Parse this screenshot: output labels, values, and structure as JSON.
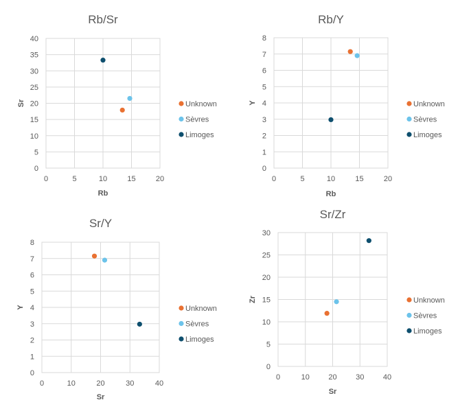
{
  "colors": {
    "Unknown": "#E97132",
    "Sèvres": "#6CC3EA",
    "Limoges": "#0E4F6E"
  },
  "chart_data": [
    {
      "type": "scatter",
      "title": "Rb/Sr",
      "xlabel": "Rb",
      "ylabel": "Sr",
      "xlim": [
        0,
        20
      ],
      "ylim": [
        0,
        40
      ],
      "xticks": [
        "0",
        "5",
        "10",
        "15",
        "20"
      ],
      "yticks": [
        "0",
        "5",
        "10",
        "15",
        "20",
        "25",
        "30",
        "35",
        "40"
      ],
      "grid": true,
      "legend_position": "right",
      "series": [
        {
          "name": "Unknown",
          "points": [
            {
              "x": 13.4,
              "y": 17.9
            }
          ]
        },
        {
          "name": "Sèvres",
          "points": [
            {
              "x": 14.7,
              "y": 21.5
            }
          ]
        },
        {
          "name": "Limoges",
          "points": [
            {
              "x": 10.0,
              "y": 33.3
            }
          ]
        }
      ]
    },
    {
      "type": "scatter",
      "title": "Rb/Y",
      "xlabel": "Rb",
      "ylabel": "Y",
      "xlim": [
        0,
        20
      ],
      "ylim": [
        0,
        8
      ],
      "xticks": [
        "0",
        "5",
        "10",
        "15",
        "20"
      ],
      "yticks": [
        "0",
        "1",
        "2",
        "3",
        "4",
        "5",
        "6",
        "7",
        "8"
      ],
      "grid": true,
      "legend_position": "right",
      "series": [
        {
          "name": "Unknown",
          "points": [
            {
              "x": 13.4,
              "y": 7.15
            }
          ]
        },
        {
          "name": "Sèvres",
          "points": [
            {
              "x": 14.6,
              "y": 6.9
            }
          ]
        },
        {
          "name": "Limoges",
          "points": [
            {
              "x": 10.0,
              "y": 2.97
            }
          ]
        }
      ]
    },
    {
      "type": "scatter",
      "title": "Sr/Y",
      "xlabel": "Sr",
      "ylabel": "Y",
      "xlim": [
        0,
        40
      ],
      "ylim": [
        0,
        8
      ],
      "xticks": [
        "0",
        "10",
        "20",
        "30",
        "40"
      ],
      "yticks": [
        "0",
        "1",
        "2",
        "3",
        "4",
        "5",
        "6",
        "7",
        "8"
      ],
      "grid": true,
      "legend_position": "right",
      "series": [
        {
          "name": "Unknown",
          "points": [
            {
              "x": 17.9,
              "y": 7.15
            }
          ]
        },
        {
          "name": "Sèvres",
          "points": [
            {
              "x": 21.4,
              "y": 6.9
            }
          ]
        },
        {
          "name": "Limoges",
          "points": [
            {
              "x": 33.3,
              "y": 2.97
            }
          ]
        }
      ]
    },
    {
      "type": "scatter",
      "title": "Sr/Zr",
      "xlabel": "Sr",
      "ylabel": "Zr",
      "xlim": [
        0,
        40
      ],
      "ylim": [
        0,
        30
      ],
      "xticks": [
        "0",
        "10",
        "20",
        "30",
        "40"
      ],
      "yticks": [
        "0",
        "5",
        "10",
        "15",
        "20",
        "25",
        "30"
      ],
      "grid": true,
      "legend_position": "right",
      "series": [
        {
          "name": "Unknown",
          "points": [
            {
              "x": 17.9,
              "y": 11.9
            }
          ]
        },
        {
          "name": "Sèvres",
          "points": [
            {
              "x": 21.4,
              "y": 14.5
            }
          ]
        },
        {
          "name": "Limoges",
          "points": [
            {
              "x": 33.3,
              "y": 28.2
            }
          ]
        }
      ]
    }
  ]
}
